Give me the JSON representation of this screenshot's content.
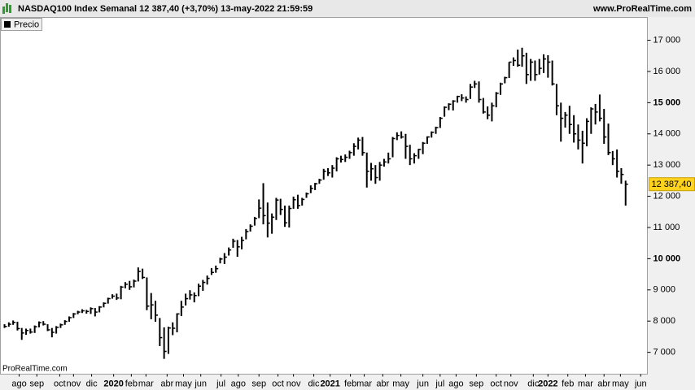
{
  "chart_data": {
    "type": "ohlc",
    "title": "NASDAQ100 Index Semanal 12 387,40 (+3,70%) 13-may-2022 21:59:59",
    "source": "www.ProRealTime.com",
    "watermark": "ProRealTime.com",
    "close_label": "12 387,40",
    "ylim": [
      6300,
      17730
    ],
    "yticks": [
      {
        "value": 7000,
        "label": "7 000"
      },
      {
        "value": 8000,
        "label": "8 000"
      },
      {
        "value": 9000,
        "label": "9 000"
      },
      {
        "value": 10000,
        "label": "10 000"
      },
      {
        "value": 11000,
        "label": "11 000"
      },
      {
        "value": 12000,
        "label": "12 000"
      },
      {
        "value": 13000,
        "label": "13 000"
      },
      {
        "value": 14000,
        "label": "14 000"
      },
      {
        "value": 15000,
        "label": "15 000"
      },
      {
        "value": 16000,
        "label": "16 000"
      },
      {
        "value": 17000,
        "label": "17 000"
      }
    ],
    "xlim": [
      -0.95,
      149.05
    ],
    "xticks": [
      {
        "value": 3.4,
        "label": "ago"
      },
      {
        "value": 7.5,
        "label": "sep"
      },
      {
        "value": 12.8,
        "label": "oct"
      },
      {
        "value": 16,
        "label": "nov"
      },
      {
        "value": 20.2,
        "label": "dic"
      },
      {
        "value": 25.3,
        "label": "2020"
      },
      {
        "value": 29.4,
        "label": "feb"
      },
      {
        "value": 32.8,
        "label": "mar"
      },
      {
        "value": 37.7,
        "label": "abr"
      },
      {
        "value": 41.5,
        "label": "may"
      },
      {
        "value": 45.5,
        "label": "jun"
      },
      {
        "value": 50.2,
        "label": "jul"
      },
      {
        "value": 54.2,
        "label": "ago"
      },
      {
        "value": 59,
        "label": "sep"
      },
      {
        "value": 63.4,
        "label": "oct"
      },
      {
        "value": 67,
        "label": "nov"
      },
      {
        "value": 71.7,
        "label": "dic"
      },
      {
        "value": 75.5,
        "label": "2021"
      },
      {
        "value": 80.2,
        "label": "feb"
      },
      {
        "value": 83.4,
        "label": "mar"
      },
      {
        "value": 87.7,
        "label": "abr"
      },
      {
        "value": 91.9,
        "label": "may"
      },
      {
        "value": 97,
        "label": "jun"
      },
      {
        "value": 101,
        "label": "jul"
      },
      {
        "value": 104.7,
        "label": "ago"
      },
      {
        "value": 109.4,
        "label": "sep"
      },
      {
        "value": 114,
        "label": "oct"
      },
      {
        "value": 117.4,
        "label": "nov"
      },
      {
        "value": 122.6,
        "label": "dic"
      },
      {
        "value": 126,
        "label": "2022"
      },
      {
        "value": 130.6,
        "label": "feb"
      },
      {
        "value": 134.7,
        "label": "mar"
      },
      {
        "value": 139,
        "label": "abr"
      },
      {
        "value": 142.8,
        "label": "may"
      },
      {
        "value": 147.5,
        "label": "jun"
      }
    ],
    "series": [
      {
        "name": "Precio",
        "color": "#000000",
        "high": [
          7900,
          7960,
          8020,
          7980,
          7780,
          7760,
          7760,
          7860,
          7990,
          8000,
          7900,
          7780,
          7840,
          7920,
          8030,
          8150,
          8260,
          8330,
          8380,
          8360,
          8440,
          8420,
          8480,
          8600,
          8750,
          8860,
          8880,
          9130,
          9250,
          9290,
          9330,
          9720,
          9680,
          9400,
          8900,
          8650,
          8100,
          7800,
          7820,
          7960,
          8250,
          8650,
          8880,
          8990,
          8920,
          9200,
          9320,
          9460,
          9700,
          9780,
          10030,
          10180,
          10360,
          10640,
          10600,
          10700,
          10950,
          11100,
          11340,
          11900,
          12420,
          11800,
          11450,
          11950,
          11920,
          11700,
          11700,
          11990,
          12050,
          11950,
          12120,
          12350,
          12430,
          12560,
          12880,
          12900,
          13000,
          13250,
          13300,
          13340,
          13460,
          13700,
          13880,
          13900,
          13400,
          13070,
          13000,
          13100,
          13200,
          13400,
          13900,
          14050,
          14080,
          14000,
          13650,
          13380,
          13520,
          13740,
          13920,
          14080,
          14230,
          14540,
          14880,
          14980,
          15080,
          15220,
          15270,
          15200,
          15600,
          15700,
          15680,
          15150,
          14880,
          15000,
          15340,
          15640,
          15830,
          16300,
          16450,
          16700,
          16760,
          16600,
          16400,
          16350,
          16400,
          16550,
          16520,
          16350,
          15600,
          15000,
          14700,
          14900,
          14600,
          14300,
          14100,
          14500,
          14850,
          14960,
          15260,
          14800,
          14330,
          13450,
          13500,
          12900,
          12500
        ],
        "low": [
          7780,
          7820,
          7880,
          7700,
          7400,
          7560,
          7600,
          7620,
          7800,
          7860,
          7680,
          7480,
          7600,
          7780,
          7880,
          7980,
          8100,
          8220,
          8260,
          8240,
          8230,
          8150,
          8280,
          8440,
          8560,
          8720,
          8680,
          8700,
          9050,
          9000,
          9080,
          9270,
          9350,
          8350,
          8060,
          7980,
          7200,
          6790,
          6950,
          7550,
          7640,
          8160,
          8500,
          8690,
          8600,
          8800,
          8970,
          9170,
          9480,
          9550,
          9850,
          9830,
          10100,
          10350,
          10060,
          10300,
          10620,
          10870,
          11060,
          11300,
          11100,
          10680,
          10800,
          11240,
          11400,
          11020,
          11000,
          11600,
          11600,
          11700,
          11950,
          12100,
          12200,
          12400,
          12530,
          12650,
          12600,
          12800,
          13080,
          13100,
          13200,
          13300,
          13500,
          13300,
          12280,
          12500,
          12400,
          12500,
          12950,
          13050,
          13250,
          13800,
          13850,
          13200,
          13000,
          13050,
          13200,
          13350,
          13680,
          13880,
          14000,
          14190,
          14550,
          14760,
          14750,
          15000,
          15050,
          15000,
          15120,
          15470,
          15000,
          14650,
          14470,
          14400,
          14850,
          15250,
          15620,
          15790,
          16180,
          16150,
          16150,
          15600,
          15700,
          15700,
          15900,
          15950,
          15800,
          15550,
          14600,
          13750,
          14200,
          14000,
          13720,
          13500,
          13050,
          13600,
          14000,
          14300,
          14400,
          13680,
          13320,
          13000,
          12600,
          12400,
          11700
        ],
        "close": [
          7830,
          7900,
          7960,
          7760,
          7620,
          7700,
          7650,
          7820,
          7950,
          7900,
          7720,
          7640,
          7800,
          7880,
          7990,
          8110,
          8230,
          8290,
          8330,
          8310,
          8400,
          8290,
          8450,
          8570,
          8720,
          8800,
          8740,
          9090,
          9180,
          9100,
          9280,
          9590,
          9400,
          8480,
          8520,
          8190,
          7470,
          7030,
          7780,
          7770,
          8230,
          8450,
          8720,
          8840,
          8820,
          9120,
          9240,
          9370,
          9560,
          9680,
          9990,
          10050,
          10280,
          10560,
          10380,
          10590,
          10870,
          11040,
          11290,
          11620,
          11380,
          11140,
          11330,
          11880,
          11580,
          11150,
          11610,
          11890,
          11700,
          11900,
          12080,
          12250,
          12400,
          12520,
          12800,
          12750,
          12900,
          13200,
          13180,
          13250,
          13400,
          13600,
          13800,
          13400,
          12800,
          12880,
          12600,
          13000,
          13100,
          13200,
          13850,
          13950,
          13900,
          13600,
          13200,
          13300,
          13500,
          13700,
          13900,
          14050,
          14200,
          14500,
          14850,
          14950,
          15050,
          15200,
          15150,
          15100,
          15500,
          15600,
          15100,
          14700,
          14600,
          14900,
          15300,
          15600,
          15800,
          16300,
          16350,
          16200,
          16500,
          15900,
          16300,
          15900,
          16100,
          16400,
          16300,
          15600,
          14900,
          14500,
          14600,
          14300,
          14000,
          13800,
          13700,
          14400,
          14800,
          14700,
          14500,
          13900,
          13400,
          13200,
          12800,
          12700,
          12387.4
        ]
      }
    ]
  }
}
